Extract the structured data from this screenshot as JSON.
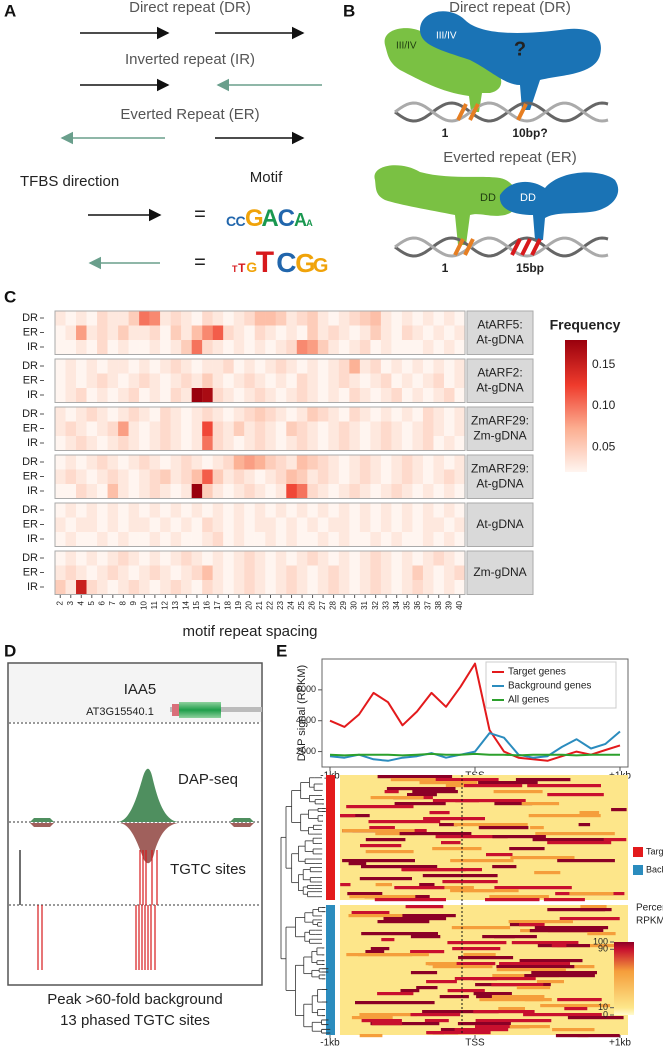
{
  "panels": {
    "letters": [
      "A",
      "B",
      "C",
      "D",
      "E"
    ],
    "A": {
      "dr": "Direct repeat (DR)",
      "ir": "Inverted repeat (IR)",
      "er": "Everted Repeat (ER)",
      "tfbs": "TFBS direction",
      "motif": "Motif",
      "equals": "=",
      "logo_forward": [
        "C",
        "C",
        "G",
        "A",
        "C",
        "A",
        "A"
      ],
      "logo_reverse": [
        "T",
        "T",
        "G",
        "T",
        "C",
        "G",
        "G"
      ]
    },
    "B": {
      "dr": "Direct repeat (DR)",
      "domain": "III/IV",
      "question": "?",
      "pos1": "1",
      "dr_spacing": "10bp?",
      "er": "Everted repeat (ER)",
      "dd": "DD",
      "er_spacing": "15bp"
    },
    "D": {
      "gene": "IAA5",
      "transcript": "AT3G15540.1",
      "track_dap": "DAP-seq",
      "track_sites": "TGTC sites",
      "caption": [
        "Peak >60-fold background",
        "13 phased TGTC sites"
      ]
    },
    "E": {
      "groups": [
        "Target",
        "Background"
      ],
      "group_colors": [
        "#e31a1c",
        "#2b8cbe"
      ],
      "scale_title": [
        "Percentile",
        "RPKM"
      ],
      "scale_ticks": [
        100,
        90,
        10,
        0
      ]
    }
  },
  "chart_data": [
    {
      "type": "heatmap",
      "x_label": "motif repeat spacing",
      "colorbar_title": "Frequency",
      "clim": [
        0.02,
        0.18
      ],
      "cticks": [
        0.05,
        {
          "value": 0.1,
          "label": "0.10"
        },
        0.15
      ],
      "rows": [
        "DR",
        "ER",
        "IR"
      ],
      "categories": [
        2,
        3,
        4,
        5,
        6,
        7,
        8,
        9,
        10,
        11,
        12,
        13,
        14,
        15,
        16,
        17,
        18,
        19,
        20,
        21,
        22,
        23,
        24,
        25,
        26,
        27,
        28,
        29,
        30,
        31,
        32,
        33,
        34,
        35,
        36,
        37,
        38,
        39,
        40
      ],
      "panels": [
        {
          "label": [
            "AtARF5:",
            "At-gDNA"
          ],
          "values": [
            [
              0.03,
              0.02,
              0.03,
              0.02,
              0.04,
              0.03,
              0.03,
              0.05,
              0.1,
              0.09,
              0.03,
              0.04,
              0.03,
              0.02,
              0.04,
              0.03,
              0.02,
              0.03,
              0.04,
              0.06,
              0.06,
              0.05,
              0.03,
              0.04,
              0.05,
              0.03,
              0.02,
              0.03,
              0.04,
              0.05,
              0.06,
              0.03,
              0.02,
              0.03,
              0.02,
              0.03,
              0.02,
              0.03,
              0.02
            ],
            [
              0.02,
              0.03,
              0.08,
              0.03,
              0.04,
              0.03,
              0.05,
              0.03,
              0.03,
              0.04,
              0.02,
              0.05,
              0.03,
              0.06,
              0.09,
              0.11,
              0.04,
              0.03,
              0.02,
              0.04,
              0.03,
              0.02,
              0.03,
              0.02,
              0.05,
              0.03,
              0.04,
              0.03,
              0.02,
              0.03,
              0.05,
              0.03,
              0.02,
              0.04,
              0.03,
              0.02,
              0.03,
              0.02,
              0.03
            ],
            [
              0.01,
              0.02,
              0.03,
              0.02,
              0.04,
              0.02,
              0.03,
              0.02,
              0.01,
              0.03,
              0.02,
              0.03,
              0.05,
              0.1,
              0.04,
              0.03,
              0.02,
              0.03,
              0.02,
              0.03,
              0.02,
              0.03,
              0.04,
              0.09,
              0.08,
              0.05,
              0.03,
              0.02,
              0.03,
              0.04,
              0.02,
              0.03,
              0.02,
              0.01,
              0.02,
              0.03,
              0.02,
              0.03,
              0.02
            ]
          ]
        },
        {
          "label": [
            "AtARF2:",
            "At-gDNA"
          ],
          "values": [
            [
              0.02,
              0.03,
              0.02,
              0.03,
              0.02,
              0.03,
              0.03,
              0.02,
              0.03,
              0.02,
              0.03,
              0.04,
              0.03,
              0.02,
              0.03,
              0.03,
              0.04,
              0.02,
              0.03,
              0.02,
              0.03,
              0.04,
              0.03,
              0.02,
              0.03,
              0.02,
              0.03,
              0.04,
              0.07,
              0.03,
              0.04,
              0.02,
              0.03,
              0.02,
              0.03,
              0.02,
              0.03,
              0.02,
              0.03
            ],
            [
              0.02,
              0.03,
              0.02,
              0.03,
              0.04,
              0.03,
              0.02,
              0.03,
              0.04,
              0.03,
              0.02,
              0.03,
              0.04,
              0.03,
              0.05,
              0.03,
              0.02,
              0.03,
              0.04,
              0.03,
              0.02,
              0.03,
              0.02,
              0.04,
              0.03,
              0.02,
              0.03,
              0.04,
              0.03,
              0.02,
              0.03,
              0.04,
              0.02,
              0.03,
              0.02,
              0.03,
              0.04,
              0.02,
              0.03
            ],
            [
              0.02,
              0.03,
              0.04,
              0.02,
              0.03,
              0.02,
              0.03,
              0.04,
              0.02,
              0.03,
              0.02,
              0.04,
              0.03,
              0.18,
              0.17,
              0.04,
              0.03,
              0.02,
              0.03,
              0.04,
              0.03,
              0.02,
              0.03,
              0.04,
              0.03,
              0.02,
              0.03,
              0.02,
              0.04,
              0.03,
              0.02,
              0.03,
              0.04,
              0.02,
              0.03,
              0.02,
              0.03,
              0.04,
              0.02
            ]
          ]
        },
        {
          "label": [
            "ZmARF29:",
            "Zm-gDNA"
          ],
          "values": [
            [
              0.03,
              0.02,
              0.03,
              0.04,
              0.03,
              0.02,
              0.03,
              0.04,
              0.03,
              0.02,
              0.04,
              0.03,
              0.02,
              0.03,
              0.04,
              0.03,
              0.02,
              0.03,
              0.04,
              0.05,
              0.04,
              0.03,
              0.02,
              0.03,
              0.05,
              0.04,
              0.03,
              0.02,
              0.04,
              0.03,
              0.02,
              0.03,
              0.02,
              0.03,
              0.02,
              0.04,
              0.03,
              0.02,
              0.03
            ],
            [
              0.03,
              0.04,
              0.03,
              0.02,
              0.03,
              0.04,
              0.08,
              0.03,
              0.02,
              0.03,
              0.04,
              0.03,
              0.02,
              0.03,
              0.12,
              0.04,
              0.03,
              0.05,
              0.03,
              0.04,
              0.03,
              0.02,
              0.05,
              0.04,
              0.03,
              0.02,
              0.03,
              0.04,
              0.03,
              0.02,
              0.03,
              0.04,
              0.03,
              0.02,
              0.03,
              0.04,
              0.03,
              0.02,
              0.03
            ],
            [
              0.02,
              0.03,
              0.04,
              0.03,
              0.02,
              0.03,
              0.04,
              0.03,
              0.02,
              0.03,
              0.04,
              0.03,
              0.02,
              0.03,
              0.1,
              0.04,
              0.03,
              0.02,
              0.03,
              0.04,
              0.03,
              0.02,
              0.03,
              0.04,
              0.03,
              0.02,
              0.03,
              0.04,
              0.03,
              0.02,
              0.03,
              0.04,
              0.03,
              0.02,
              0.03,
              0.04,
              0.02,
              0.03,
              0.02
            ]
          ]
        },
        {
          "label": [
            "ZmARF29:",
            "At-gDNA"
          ],
          "values": [
            [
              0.02,
              0.03,
              0.02,
              0.03,
              0.04,
              0.03,
              0.02,
              0.03,
              0.04,
              0.03,
              0.02,
              0.03,
              0.04,
              0.03,
              0.02,
              0.03,
              0.04,
              0.07,
              0.08,
              0.07,
              0.05,
              0.04,
              0.03,
              0.06,
              0.05,
              0.04,
              0.03,
              0.02,
              0.03,
              0.04,
              0.03,
              0.02,
              0.03,
              0.04,
              0.03,
              0.02,
              0.03,
              0.02,
              0.03
            ],
            [
              0.03,
              0.04,
              0.03,
              0.02,
              0.03,
              0.04,
              0.03,
              0.02,
              0.03,
              0.04,
              0.05,
              0.03,
              0.04,
              0.06,
              0.11,
              0.05,
              0.03,
              0.04,
              0.03,
              0.02,
              0.03,
              0.04,
              0.06,
              0.05,
              0.03,
              0.04,
              0.03,
              0.02,
              0.03,
              0.04,
              0.03,
              0.02,
              0.03,
              0.04,
              0.03,
              0.02,
              0.03,
              0.04,
              0.03
            ],
            [
              0.02,
              0.01,
              0.04,
              0.03,
              0.02,
              0.06,
              0.03,
              0.02,
              0.03,
              0.04,
              0.03,
              0.02,
              0.03,
              0.18,
              0.05,
              0.03,
              0.02,
              0.03,
              0.04,
              0.03,
              0.02,
              0.03,
              0.12,
              0.1,
              0.04,
              0.03,
              0.02,
              0.03,
              0.04,
              0.03,
              0.02,
              0.03,
              0.04,
              0.03,
              0.02,
              0.03,
              0.02,
              0.03,
              0.02
            ]
          ]
        },
        {
          "label": [
            "At-gDNA"
          ],
          "values": [
            [
              0.02,
              0.03,
              0.02,
              0.03,
              0.02,
              0.03,
              0.02,
              0.03,
              0.02,
              0.03,
              0.02,
              0.03,
              0.02,
              0.03,
              0.02,
              0.03,
              0.02,
              0.03,
              0.02,
              0.03,
              0.02,
              0.03,
              0.02,
              0.03,
              0.02,
              0.03,
              0.02,
              0.03,
              0.02,
              0.03,
              0.02,
              0.03,
              0.02,
              0.03,
              0.02,
              0.03,
              0.02,
              0.03,
              0.02
            ],
            [
              0.03,
              0.02,
              0.03,
              0.03,
              0.02,
              0.03,
              0.02,
              0.03,
              0.03,
              0.02,
              0.03,
              0.02,
              0.03,
              0.02,
              0.04,
              0.03,
              0.02,
              0.03,
              0.02,
              0.03,
              0.03,
              0.02,
              0.03,
              0.02,
              0.03,
              0.02,
              0.03,
              0.03,
              0.02,
              0.03,
              0.02,
              0.03,
              0.02,
              0.03,
              0.02,
              0.03,
              0.03,
              0.02,
              0.03
            ],
            [
              0.02,
              0.03,
              0.02,
              0.02,
              0.03,
              0.02,
              0.03,
              0.02,
              0.02,
              0.03,
              0.02,
              0.03,
              0.02,
              0.02,
              0.03,
              0.04,
              0.02,
              0.03,
              0.02,
              0.02,
              0.03,
              0.02,
              0.03,
              0.02,
              0.02,
              0.03,
              0.02,
              0.03,
              0.02,
              0.02,
              0.03,
              0.02,
              0.03,
              0.02,
              0.02,
              0.03,
              0.02,
              0.03,
              0.02
            ]
          ]
        },
        {
          "label": [
            "Zm-gDNA"
          ],
          "values": [
            [
              0.02,
              0.03,
              0.02,
              0.03,
              0.02,
              0.03,
              0.04,
              0.03,
              0.02,
              0.03,
              0.02,
              0.03,
              0.04,
              0.03,
              0.02,
              0.03,
              0.02,
              0.03,
              0.04,
              0.03,
              0.02,
              0.03,
              0.02,
              0.03,
              0.04,
              0.03,
              0.02,
              0.03,
              0.02,
              0.03,
              0.04,
              0.03,
              0.02,
              0.03,
              0.02,
              0.03,
              0.04,
              0.03,
              0.02
            ],
            [
              0.03,
              0.04,
              0.03,
              0.02,
              0.03,
              0.04,
              0.03,
              0.02,
              0.03,
              0.04,
              0.03,
              0.02,
              0.03,
              0.04,
              0.06,
              0.03,
              0.02,
              0.03,
              0.04,
              0.03,
              0.02,
              0.03,
              0.04,
              0.03,
              0.02,
              0.03,
              0.04,
              0.03,
              0.02,
              0.03,
              0.04,
              0.03,
              0.02,
              0.03,
              0.05,
              0.03,
              0.02,
              0.03,
              0.04
            ],
            [
              0.05,
              0.03,
              0.15,
              0.04,
              0.03,
              0.02,
              0.03,
              0.04,
              0.03,
              0.02,
              0.03,
              0.04,
              0.03,
              0.02,
              0.04,
              0.03,
              0.02,
              0.03,
              0.04,
              0.03,
              0.02,
              0.03,
              0.04,
              0.03,
              0.02,
              0.03,
              0.04,
              0.03,
              0.02,
              0.03,
              0.04,
              0.03,
              0.02,
              0.03,
              0.04,
              0.03,
              0.02,
              0.03,
              0.02
            ]
          ]
        }
      ]
    },
    {
      "type": "line",
      "y_label": "DAP signal (RPKM)",
      "legend": "top-right",
      "x": [
        -1000,
        -900,
        -800,
        -700,
        -600,
        -500,
        -400,
        -300,
        -200,
        -100,
        0,
        100,
        200,
        300,
        400,
        500,
        600,
        700,
        800,
        900,
        1000
      ],
      "xlim": [
        -1000,
        1000
      ],
      "ylim": [
        1000,
        8000
      ],
      "xticks": [
        {
          "value": -1000,
          "label": "-1kb"
        },
        {
          "value": 0,
          "label": "TSS"
        },
        {
          "value": 1000,
          "label": "+1kb"
        }
      ],
      "yticks": [
        2000,
        4000,
        6000
      ],
      "series": [
        {
          "name": "Target genes",
          "color": "#e31a1c",
          "values": [
            4000,
            3600,
            4400,
            5800,
            5200,
            3700,
            4600,
            5800,
            4900,
            6200,
            7700,
            3400,
            2000,
            1600,
            1500,
            1400,
            1700,
            2000,
            1800,
            2100,
            2400
          ]
        },
        {
          "name": "Background genes",
          "color": "#2b8cbe",
          "values": [
            1700,
            1600,
            1800,
            1500,
            1400,
            1600,
            1700,
            1900,
            1600,
            1800,
            2000,
            3200,
            2900,
            1800,
            1600,
            1700,
            2300,
            2800,
            2200,
            2500,
            3300
          ]
        },
        {
          "name": "All genes",
          "color": "#2ca02c",
          "values": [
            1800,
            1750,
            1800,
            1800,
            1800,
            1750,
            1800,
            1850,
            1800,
            1800,
            1850,
            1800,
            1800,
            1750,
            1800,
            1800,
            1800,
            1750,
            1800,
            1800,
            1800
          ]
        }
      ]
    }
  ]
}
